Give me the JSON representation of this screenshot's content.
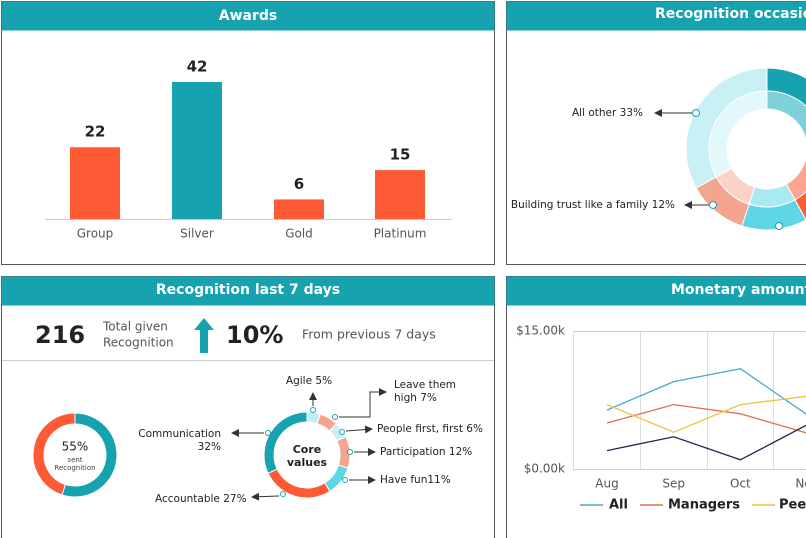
{
  "awards": {
    "type": "bar",
    "title": "Awards",
    "categories": [
      "Group",
      "Silver",
      "Gold",
      "Platinum"
    ],
    "values": [
      22,
      42,
      6,
      15
    ],
    "colors": [
      "#ff5a36",
      "#17a2b0",
      "#ff5a36",
      "#ff5a36"
    ]
  },
  "occasions": {
    "type": "donut",
    "title": "Recognition occasions",
    "segments": [
      {
        "label": null,
        "value": 25,
        "color": "#17a2b0",
        "inner_color": "#7fd0d9"
      },
      {
        "label": null,
        "value": 17,
        "color": "#ff5a36",
        "inner_color": "#ffa48f"
      },
      {
        "label": null,
        "value": 13,
        "color": "#5fd6e4",
        "inner_color": "#a9e9f1"
      },
      {
        "label": "Building trust like a family 12%",
        "value": 12,
        "color": "#f4a58f",
        "inner_color": "#fbd2c6"
      },
      {
        "label": "All other 33%",
        "value": 33,
        "color": "#c9f0f5",
        "inner_color": "#e2f8fa"
      }
    ]
  },
  "last7": {
    "title": "Recognition last 7 days",
    "total": {
      "value": 216,
      "label_lines": [
        "Total given",
        "Recognition"
      ]
    },
    "change": {
      "value_label": "10%",
      "caption": "From previous  7 days"
    },
    "sent": {
      "type": "donut",
      "center_label": "55%",
      "center_lines": [
        "sent",
        "Recognition"
      ],
      "segments": [
        {
          "value": 55,
          "color": "#17a2b0"
        },
        {
          "value": 45,
          "color": "#ff5a36"
        }
      ]
    },
    "core_values": {
      "type": "donut",
      "center_lines": [
        "Core",
        "values"
      ],
      "segments": [
        {
          "label_lines": [
            "Agile 5%"
          ],
          "value": 5,
          "color": "#bfeef3"
        },
        {
          "label_lines": [
            "Leave them",
            "high 7%"
          ],
          "value": 7,
          "color": "#f4a58f"
        },
        {
          "label_lines": [
            "People first, first 6%"
          ],
          "value": 6,
          "color": "#c9f0f5"
        },
        {
          "label_lines": [
            "Participation 12%"
          ],
          "value": 12,
          "color": "#f4a58f"
        },
        {
          "label_lines": [
            "Have fun11%"
          ],
          "value": 11,
          "color": "#5fd6e4"
        },
        {
          "label_lines": [
            "Accountable 27%"
          ],
          "value": 27,
          "color": "#ff5a36"
        },
        {
          "label_lines": [
            "Communication",
            "32%"
          ],
          "value": 32,
          "color": "#17a2b0"
        }
      ]
    }
  },
  "monetary": {
    "type": "line",
    "title": "Monetary amount spent",
    "categories": [
      "Aug",
      "Sep",
      "Oct",
      "Nov"
    ],
    "ylim": [
      0,
      15000
    ],
    "yticks": [
      {
        "value": 15000,
        "label": "$15.00k"
      },
      {
        "value": 0,
        "label": "$0.00k"
      }
    ],
    "series": [
      {
        "name": "All",
        "color": "#4aa8d8",
        "values": [
          6400,
          9500,
          10900,
          5900
        ]
      },
      {
        "name": "Managers",
        "color": "#e07050",
        "values": [
          5000,
          7000,
          6000,
          3900
        ]
      },
      {
        "name": "Peers",
        "color": "#f0c040",
        "values": [
          7000,
          4000,
          7000,
          7900
        ]
      },
      {
        "name": null,
        "color": "#1f2a4a",
        "values": [
          2000,
          3500,
          1000,
          4800
        ]
      }
    ]
  }
}
